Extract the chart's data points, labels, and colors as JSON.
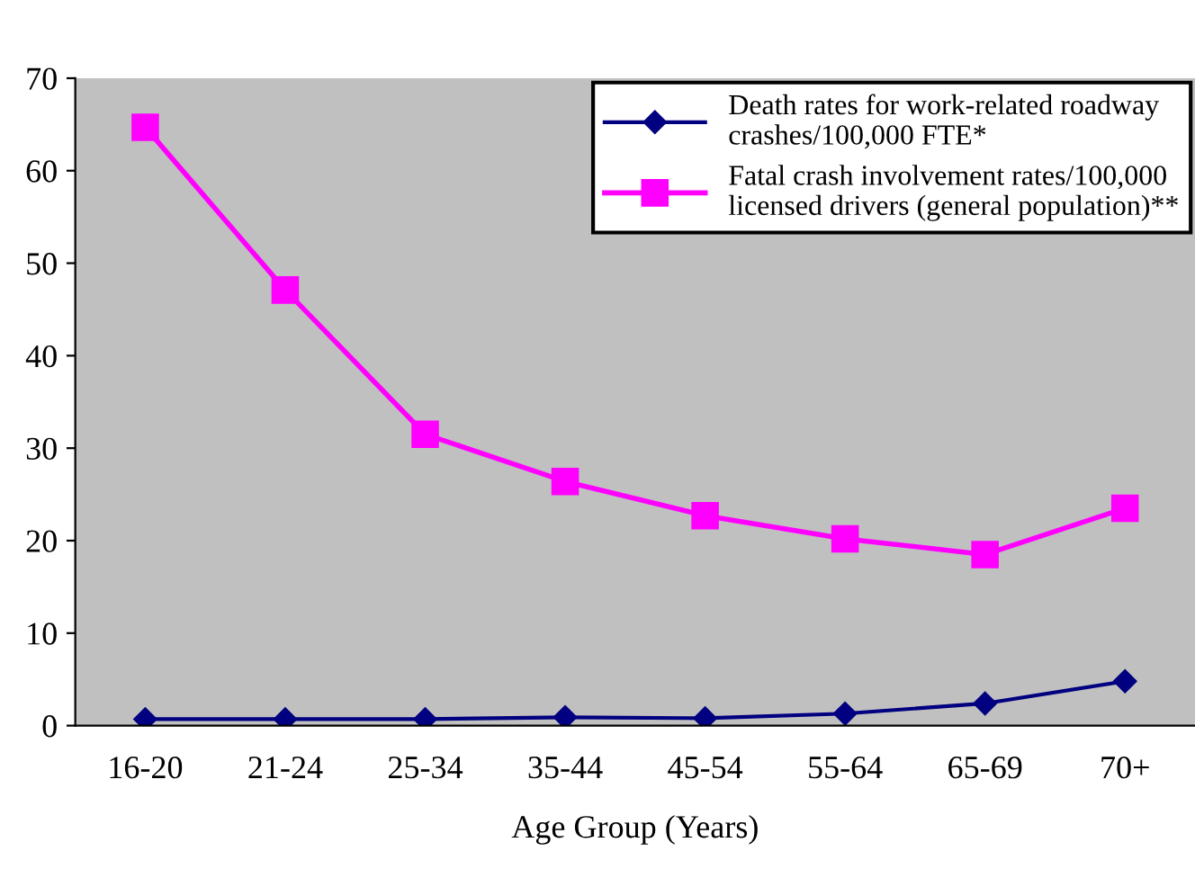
{
  "chart_data": {
    "type": "line",
    "xlabel": "Age Group (Years)",
    "categories": [
      "16-20",
      "21-24",
      "25-34",
      "35-44",
      "45-54",
      "55-64",
      "65-69",
      "70+"
    ],
    "series": [
      {
        "name": "Death rates for work-related roadway\ncrashes/100,000 FTE*",
        "color": "#000080",
        "marker": "diamond",
        "values": [
          0.7,
          0.7,
          0.7,
          0.9,
          0.8,
          1.3,
          2.4,
          4.8
        ]
      },
      {
        "name": "Fatal crash involvement rates/100,000\nlicensed drivers (general population)**",
        "color": "#ff00ff",
        "marker": "square",
        "values": [
          64.7,
          47.1,
          31.5,
          26.4,
          22.7,
          20.2,
          18.5,
          23.5
        ]
      }
    ],
    "ylim": [
      0,
      70
    ],
    "yticks": [
      0,
      10,
      20,
      30,
      40,
      50,
      60,
      70
    ],
    "grid": false,
    "legend": "top right",
    "line_style": "solid"
  }
}
